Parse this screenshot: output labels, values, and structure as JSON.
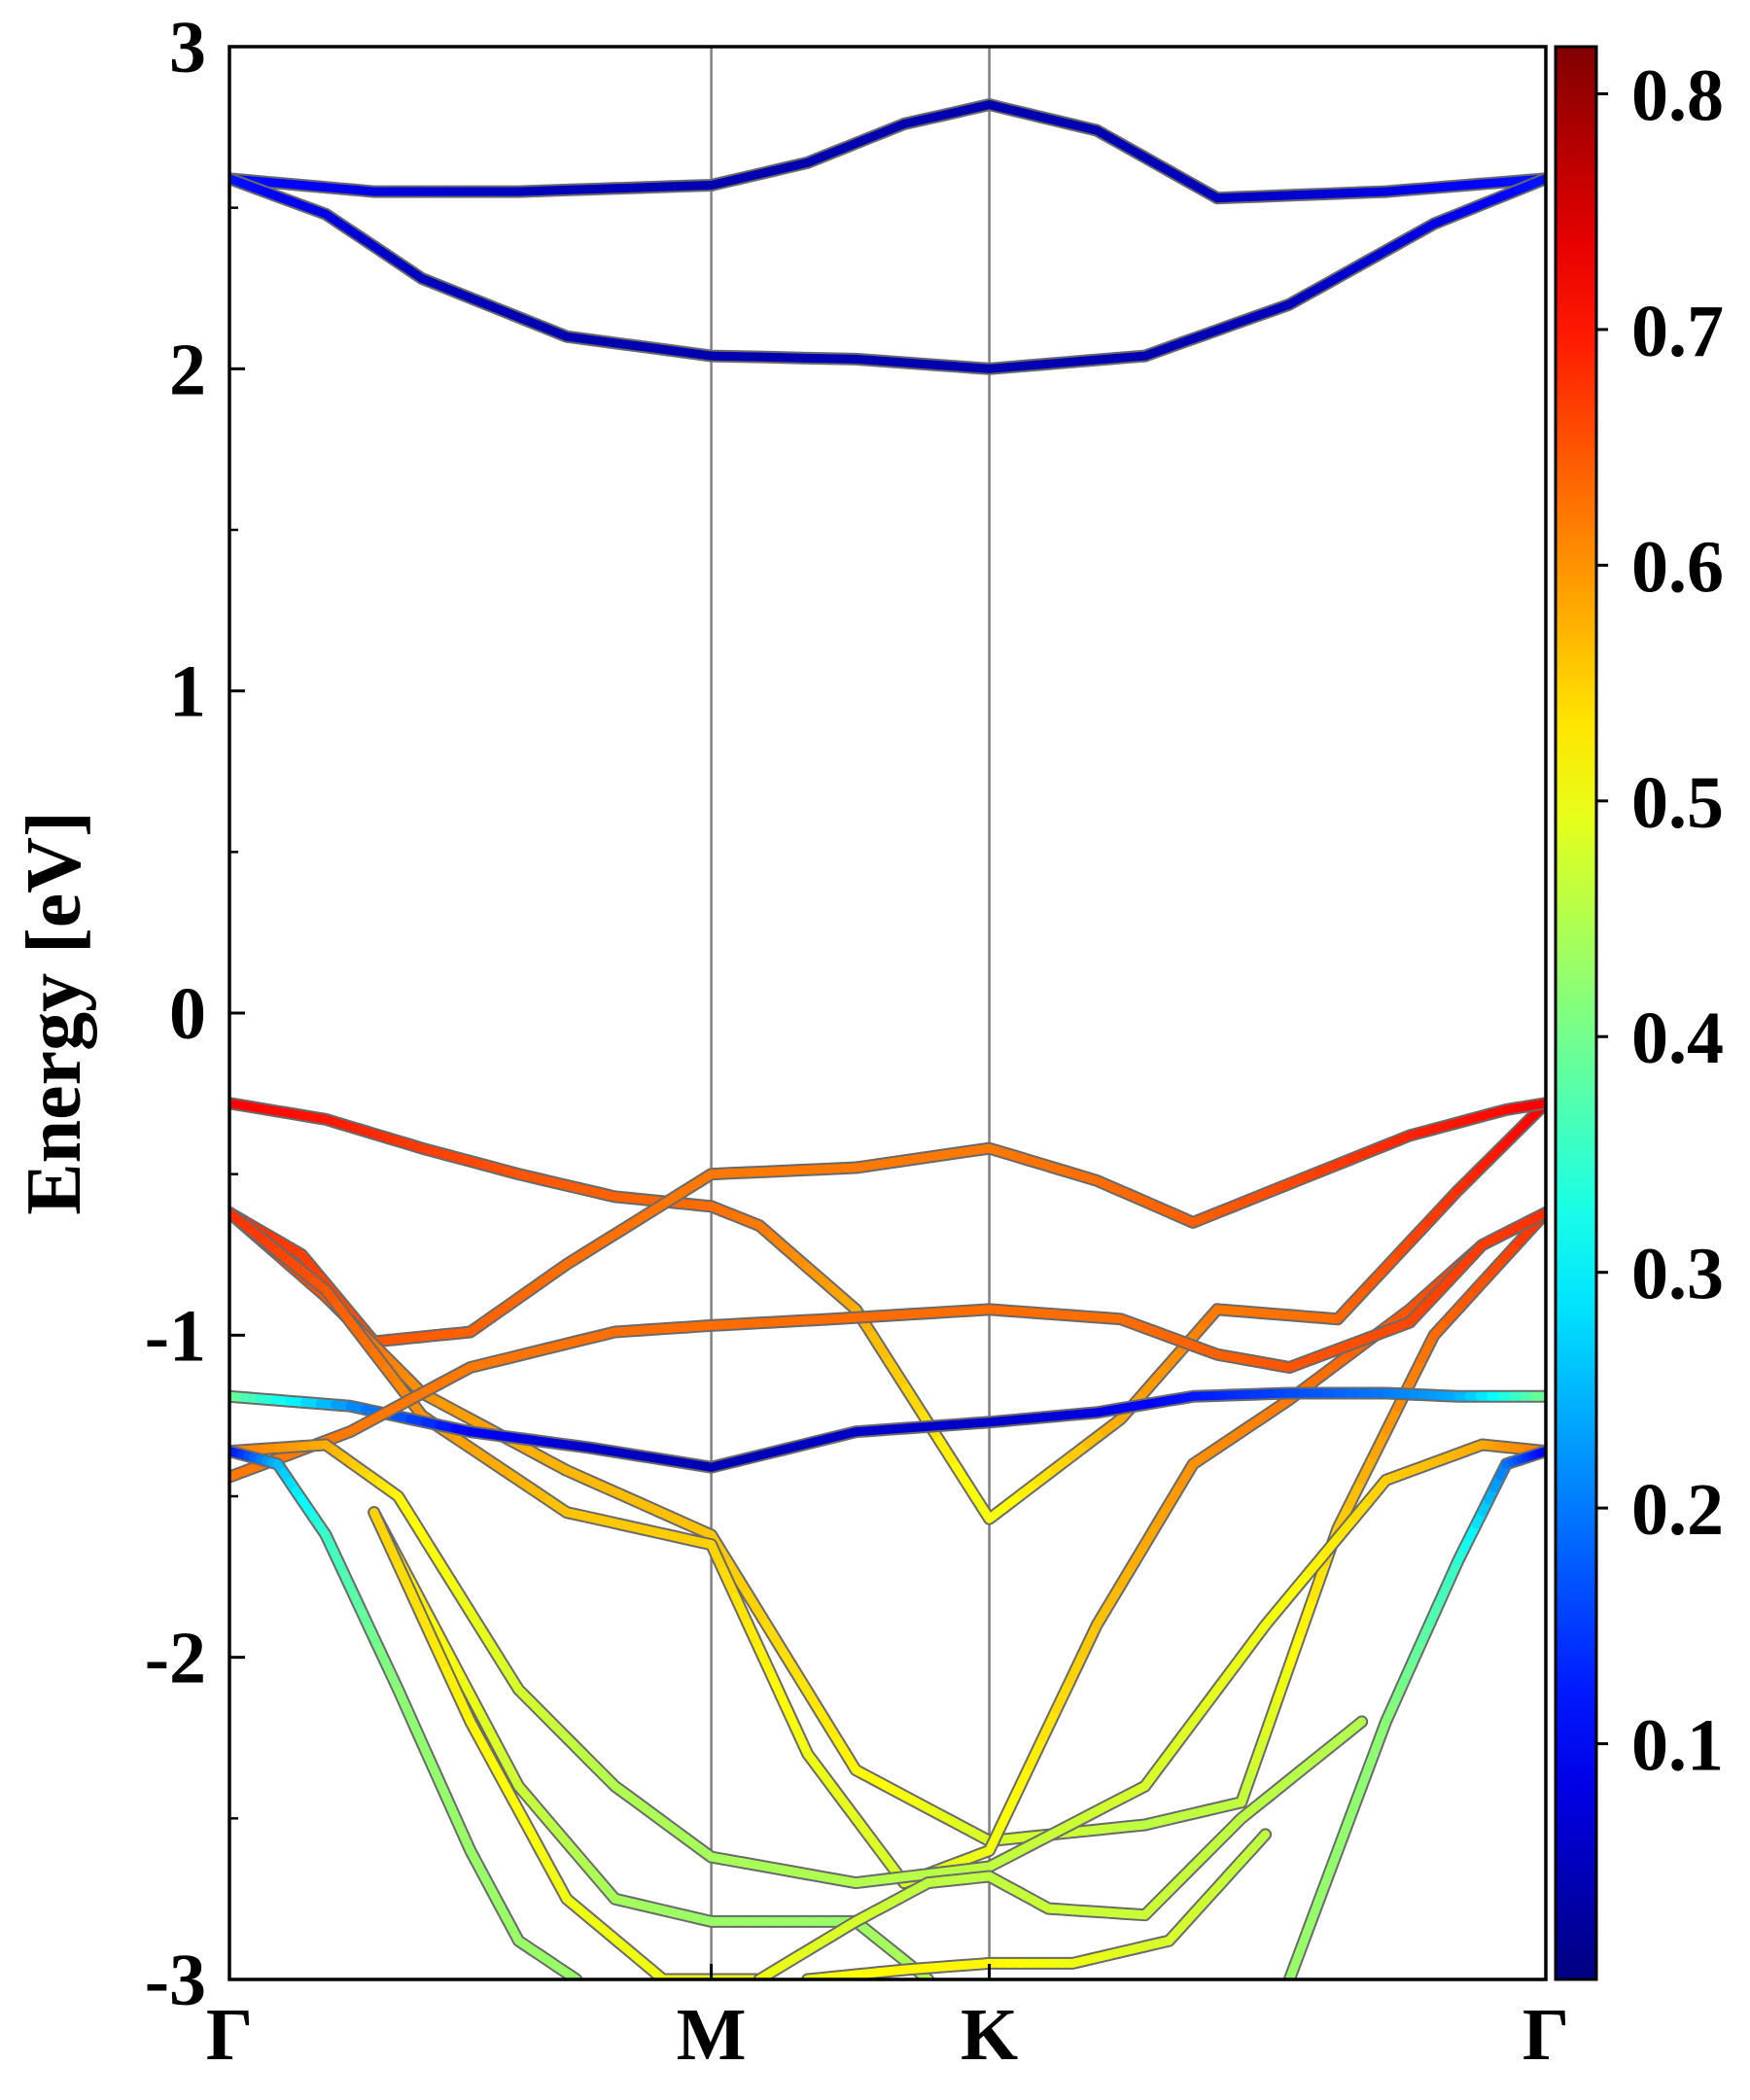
{
  "chart_data": {
    "type": "line",
    "ylabel": "Energy [eV]",
    "xlabel": "",
    "ylim": [
      -3,
      3
    ],
    "kpath": [
      "Γ",
      "M",
      "K",
      "Γ"
    ],
    "kpath_positions": [
      0,
      1,
      1.577,
      2.732
    ],
    "yticks": [
      -3,
      -2,
      -1,
      0,
      1,
      2,
      3
    ],
    "ytick_labels": [
      "-3",
      "-2",
      "-1",
      "0",
      "1",
      "2",
      "3"
    ],
    "vertical_lines_at": [
      1,
      1.577
    ],
    "grid": false,
    "colormap": "jet",
    "colorbar": {
      "min": 0.0,
      "max": 0.82,
      "ticks": [
        0.1,
        0.2,
        0.3,
        0.4,
        0.5,
        0.6,
        0.7,
        0.8
      ],
      "tick_labels": [
        "0.1",
        "0.2",
        "0.3",
        "0.4",
        "0.5",
        "0.6",
        "0.7",
        "0.8"
      ]
    },
    "series": [
      {
        "x": [
          0,
          0.3,
          0.6,
          1.0,
          1.2,
          1.4,
          1.577,
          1.8,
          2.05,
          2.4,
          2.732
        ],
        "y": [
          2.59,
          2.55,
          2.55,
          2.57,
          2.64,
          2.76,
          2.82,
          2.74,
          2.53,
          2.55,
          2.59
        ],
        "c": [
          0.12,
          0.08,
          0.05,
          0.04,
          0.04,
          0.04,
          0.04,
          0.04,
          0.05,
          0.08,
          0.12
        ]
      },
      {
        "x": [
          0,
          0.2,
          0.4,
          0.7,
          1.0,
          1.3,
          1.577,
          1.9,
          2.2,
          2.5,
          2.732
        ],
        "y": [
          2.59,
          2.48,
          2.28,
          2.1,
          2.04,
          2.03,
          2.0,
          2.04,
          2.2,
          2.45,
          2.59
        ],
        "c": [
          0.12,
          0.08,
          0.05,
          0.04,
          0.04,
          0.04,
          0.04,
          0.04,
          0.05,
          0.08,
          0.12
        ]
      },
      {
        "x": [
          0,
          0.2,
          0.4,
          0.6,
          0.8,
          1.0,
          1.1,
          1.3,
          1.577,
          1.85,
          2.05,
          2.3,
          2.55,
          2.732
        ],
        "y": [
          -0.28,
          -0.33,
          -0.42,
          -0.5,
          -0.57,
          -0.6,
          -0.66,
          -0.92,
          -1.57,
          -1.26,
          -0.92,
          -0.95,
          -0.55,
          -0.28
        ],
        "c": [
          0.72,
          0.7,
          0.67,
          0.65,
          0.64,
          0.63,
          0.62,
          0.58,
          0.5,
          0.58,
          0.62,
          0.63,
          0.68,
          0.72
        ]
      },
      {
        "x": [
          0,
          0.15,
          0.3,
          0.5,
          0.7,
          1.0,
          1.3,
          1.577,
          1.8,
          2.0,
          2.2,
          2.45,
          2.65,
          2.732
        ],
        "y": [
          -0.62,
          -0.75,
          -1.02,
          -0.99,
          -0.78,
          -0.5,
          -0.48,
          -0.42,
          -0.52,
          -0.65,
          -0.53,
          -0.38,
          -0.3,
          -0.28
        ],
        "c": [
          0.68,
          0.67,
          0.65,
          0.64,
          0.63,
          0.62,
          0.62,
          0.62,
          0.63,
          0.64,
          0.66,
          0.69,
          0.71,
          0.72
        ]
      },
      {
        "x": [
          0,
          0.2,
          0.4,
          0.7,
          1.0,
          1.3,
          1.577,
          1.9,
          2.1,
          2.3,
          2.5,
          2.732
        ],
        "y": [
          -0.62,
          -0.88,
          -1.18,
          -1.42,
          -1.62,
          -2.35,
          -2.57,
          -2.52,
          -2.45,
          -1.6,
          -1.0,
          -0.62
        ],
        "c": [
          0.68,
          0.65,
          0.6,
          0.57,
          0.56,
          0.52,
          0.48,
          0.46,
          0.46,
          0.55,
          0.63,
          0.68
        ]
      },
      {
        "x": [
          0,
          0.2,
          0.4,
          0.7,
          1.0,
          1.2,
          1.4,
          1.577,
          1.8,
          2.0,
          2.2,
          2.45,
          2.6,
          2.732
        ],
        "y": [
          -0.62,
          -0.86,
          -1.25,
          -1.55,
          -1.65,
          -2.3,
          -2.7,
          -2.6,
          -1.9,
          -1.4,
          -1.2,
          -0.92,
          -0.72,
          -0.62
        ],
        "c": [
          0.68,
          0.65,
          0.6,
          0.56,
          0.55,
          0.5,
          0.48,
          0.5,
          0.56,
          0.6,
          0.62,
          0.65,
          0.67,
          0.68
        ]
      },
      {
        "x": [
          0,
          0.25,
          0.5,
          0.75,
          1.0,
          1.3,
          1.577,
          1.8,
          2.0,
          2.2,
          2.4,
          2.55,
          2.732
        ],
        "y": [
          -1.19,
          -1.22,
          -1.3,
          -1.35,
          -1.41,
          -1.3,
          -1.27,
          -1.24,
          -1.19,
          -1.18,
          -1.18,
          -1.19,
          -1.19
        ],
        "c": [
          0.4,
          0.22,
          0.1,
          0.06,
          0.04,
          0.06,
          0.06,
          0.08,
          0.12,
          0.16,
          0.2,
          0.24,
          0.4
        ]
      },
      {
        "x": [
          0,
          0.25,
          0.5,
          0.8,
          1.0,
          1.25,
          1.577,
          1.85,
          2.05,
          2.2,
          2.45,
          2.6,
          2.732
        ],
        "y": [
          -1.44,
          -1.3,
          -1.1,
          -0.99,
          -0.97,
          -0.95,
          -0.92,
          -0.95,
          -1.06,
          -1.1,
          -0.96,
          -0.72,
          -0.62
        ],
        "c": [
          0.62,
          0.62,
          0.62,
          0.63,
          0.63,
          0.63,
          0.63,
          0.63,
          0.64,
          0.65,
          0.66,
          0.67,
          0.68
        ]
      },
      {
        "x": [
          0,
          0.2,
          0.35,
          0.6,
          0.8,
          1.0,
          1.3,
          1.577,
          1.9,
          2.15,
          2.4,
          2.6,
          2.732
        ],
        "y": [
          -1.36,
          -1.34,
          -1.5,
          -2.1,
          -2.4,
          -2.62,
          -2.7,
          -2.65,
          -2.4,
          -1.9,
          -1.45,
          -1.34,
          -1.36
        ],
        "c": [
          0.62,
          0.58,
          0.52,
          0.48,
          0.45,
          0.44,
          0.45,
          0.46,
          0.48,
          0.5,
          0.55,
          0.58,
          0.62
        ]
      },
      {
        "x": [
          0,
          0.1,
          0.2,
          0.35,
          0.5,
          0.6,
          0.72
        ],
        "y": [
          -1.36,
          -1.4,
          -1.62,
          -2.1,
          -2.6,
          -2.88,
          -3.0
        ],
        "c": [
          0.1,
          0.25,
          0.35,
          0.42,
          0.43,
          0.43,
          0.43
        ]
      },
      {
        "x": [
          2.2,
          2.4,
          2.55,
          2.65,
          2.732
        ],
        "y": [
          -3.0,
          -2.2,
          -1.7,
          -1.4,
          -1.36
        ],
        "c": [
          0.43,
          0.42,
          0.35,
          0.2,
          0.1
        ]
      },
      {
        "x": [
          0.3,
          0.6,
          0.8,
          1.0,
          1.3,
          1.45
        ],
        "y": [
          -1.55,
          -2.4,
          -2.75,
          -2.82,
          -2.82,
          -3.0
        ],
        "c": [
          0.55,
          0.47,
          0.44,
          0.43,
          0.43,
          0.45
        ]
      },
      {
        "x": [
          0.3,
          0.5,
          0.7,
          0.9,
          1.1
        ],
        "y": [
          -1.55,
          -2.2,
          -2.75,
          -3.0,
          -3.0
        ],
        "c": [
          0.55,
          0.52,
          0.5,
          0.5,
          0.5
        ]
      },
      {
        "x": [
          1.1,
          1.3,
          1.45,
          1.577,
          1.7,
          1.9,
          2.1,
          2.35
        ],
        "y": [
          -3.0,
          -2.82,
          -2.7,
          -2.68,
          -2.78,
          -2.8,
          -2.5,
          -2.2
        ],
        "c": [
          0.5,
          0.48,
          0.46,
          0.46,
          0.47,
          0.47,
          0.46,
          0.45
        ]
      },
      {
        "x": [
          1.2,
          1.4,
          1.577,
          1.75,
          1.95,
          2.15
        ],
        "y": [
          -3.0,
          -2.97,
          -2.95,
          -2.95,
          -2.88,
          -2.55
        ],
        "c": [
          0.5,
          0.52,
          0.52,
          0.5,
          0.48,
          0.46
        ]
      }
    ]
  }
}
